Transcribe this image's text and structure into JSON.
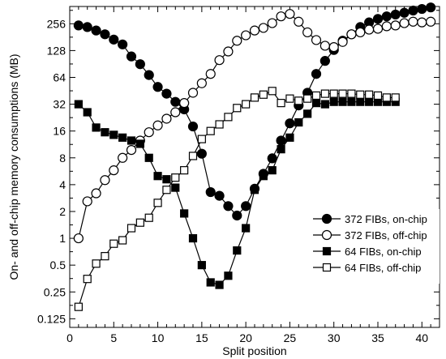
{
  "chart_data": {
    "type": "line",
    "xlabel": "Split position",
    "ylabel": "On- and off-chip memory consumptions (MB)",
    "xlim": [
      0,
      42
    ],
    "ylim": [
      0.1,
      400
    ],
    "yscale": "log2",
    "grid": false,
    "legend_position": "center-right",
    "x_ticks": [
      0,
      5,
      10,
      15,
      20,
      25,
      30,
      35,
      40
    ],
    "x_tick_labels": [
      "0",
      "5",
      "10",
      "15",
      "20",
      "25",
      "30",
      "35",
      "40"
    ],
    "y_ticks": [
      0.125,
      0.25,
      0.5,
      1,
      2,
      4,
      8,
      16,
      32,
      64,
      128,
      256
    ],
    "y_tick_labels": [
      "0.125",
      "0.25",
      "0.5",
      "1",
      "2",
      "4",
      "8",
      "16",
      "32",
      "64",
      "128",
      "256"
    ],
    "series": [
      {
        "name": "372 FIBs, on-chip",
        "marker": "circle",
        "filled": true,
        "x": [
          1,
          2,
          3,
          4,
          5,
          6,
          7,
          8,
          9,
          10,
          11,
          12,
          13,
          14,
          15,
          16,
          17,
          18,
          19,
          20,
          21,
          22,
          23,
          24,
          25,
          26,
          27,
          28,
          29,
          30,
          31,
          32,
          33,
          34,
          35,
          36,
          37,
          38,
          39,
          40,
          41
        ],
        "y": [
          245,
          235,
          215,
          195,
          170,
          150,
          110,
          90,
          68,
          50,
          42,
          34,
          28,
          18,
          8.9,
          3.3,
          3.0,
          2.3,
          1.8,
          2.3,
          3.6,
          5.3,
          7.9,
          12.5,
          19.5,
          31,
          43,
          70,
          98,
          130,
          165,
          195,
          235,
          265,
          290,
          310,
          325,
          340,
          360,
          375,
          390
        ]
      },
      {
        "name": "372 FIBs, off-chip",
        "marker": "circle",
        "filled": false,
        "x": [
          1,
          2,
          3,
          4,
          5,
          6,
          7,
          8,
          9,
          10,
          11,
          12,
          13,
          14,
          15,
          16,
          17,
          18,
          19,
          20,
          21,
          22,
          23,
          24,
          25,
          26,
          27,
          28,
          29,
          30,
          31,
          32,
          33,
          34,
          35,
          36,
          37,
          38,
          39,
          40,
          41
        ],
        "y": [
          1.0,
          2.6,
          3.2,
          4.5,
          5.8,
          8.0,
          9.8,
          12.5,
          15.5,
          18.5,
          22,
          26,
          33,
          43,
          55,
          70,
          100,
          125,
          165,
          190,
          215,
          230,
          260,
          310,
          330,
          270,
          205,
          168,
          145,
          140,
          160,
          195,
          205,
          220,
          225,
          240,
          245,
          260,
          270,
          265,
          270
        ]
      },
      {
        "name": "64 FIBs, on-chip",
        "marker": "square",
        "filled": true,
        "x": [
          1,
          2,
          3,
          4,
          5,
          6,
          7,
          8,
          9,
          10,
          11,
          12,
          13,
          14,
          15,
          16,
          17,
          18,
          19,
          20,
          21,
          22,
          23,
          24,
          25,
          26,
          27,
          28,
          29,
          30,
          31,
          32,
          33,
          34,
          35,
          36,
          37
        ],
        "y": [
          32,
          26,
          17.5,
          15.5,
          14.5,
          13.5,
          12.5,
          11.5,
          8,
          5,
          4.6,
          3.7,
          1.9,
          1.0,
          0.5,
          0.32,
          0.3,
          0.38,
          0.73,
          1.3,
          3.5,
          5,
          5.8,
          10,
          13.5,
          20,
          25,
          33,
          32,
          34,
          34,
          34,
          34,
          34,
          34,
          34,
          34
        ]
      },
      {
        "name": "64 FIBs, off-chip",
        "marker": "square",
        "filled": false,
        "x": [
          1,
          2,
          3,
          4,
          5,
          6,
          7,
          8,
          9,
          10,
          11,
          12,
          13,
          14,
          15,
          16,
          17,
          18,
          19,
          20,
          21,
          22,
          23,
          24,
          25,
          26,
          27,
          28,
          29,
          30,
          31,
          32,
          33,
          34,
          35,
          36,
          37
        ],
        "y": [
          0.17,
          0.35,
          0.52,
          0.63,
          0.87,
          0.95,
          1.3,
          1.5,
          1.7,
          2.5,
          3.5,
          4.8,
          5.8,
          8.4,
          13,
          16,
          19,
          23,
          29,
          32,
          38,
          41,
          45,
          33,
          37,
          35,
          37,
          40,
          42,
          42,
          42,
          42,
          41,
          41,
          40,
          38,
          38
        ]
      }
    ]
  }
}
